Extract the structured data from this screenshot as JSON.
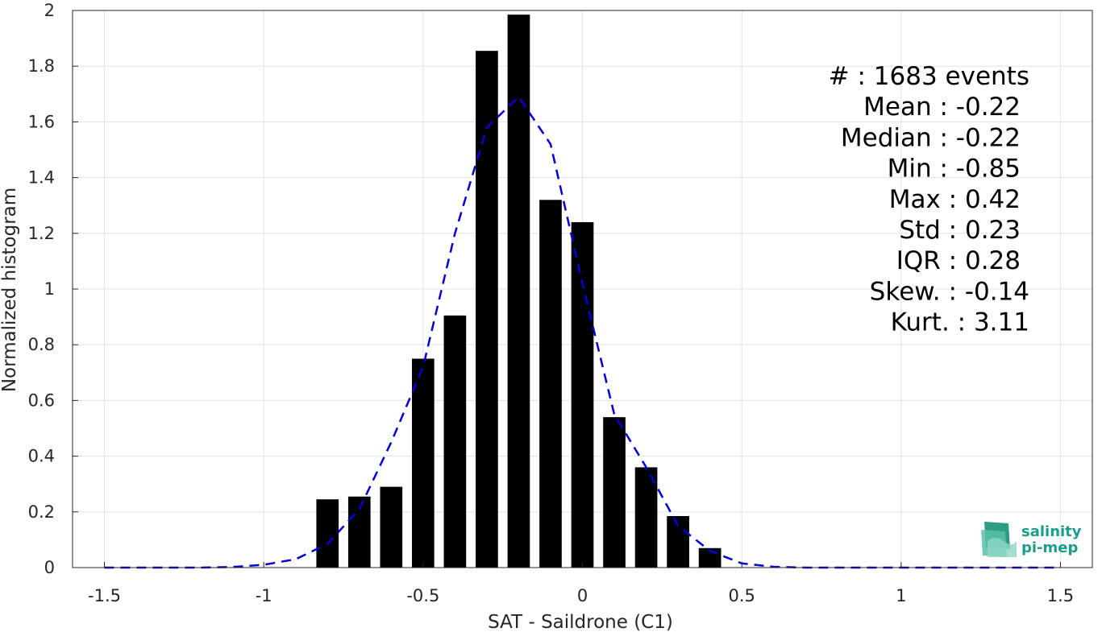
{
  "chart_data": {
    "type": "bar",
    "title": "",
    "xlabel": "SAT - Saildrone (C1)",
    "ylabel": "Normalized histogram",
    "xlim": [
      -1.6,
      1.6
    ],
    "ylim": [
      0,
      2
    ],
    "grid": true,
    "x_ticks": [
      -1.5,
      -1,
      -0.5,
      0,
      0.5,
      1,
      1.5
    ],
    "x_tick_labels": [
      "-1.5",
      "-1",
      "-0.5",
      "0",
      "0.5",
      "1",
      "1.5"
    ],
    "y_ticks": [
      0,
      0.2,
      0.4,
      0.6,
      0.8,
      1,
      1.2,
      1.4,
      1.6,
      1.8,
      2
    ],
    "y_tick_labels": [
      "0",
      "0.2",
      "0.4",
      "0.6",
      "0.8",
      "1",
      "1.2",
      "1.4",
      "1.6",
      "1.8",
      "2"
    ],
    "bar_width": 0.07,
    "bar_color": "#000000",
    "series": [
      {
        "x": [
          -0.8,
          -0.7,
          -0.6,
          -0.5,
          -0.4,
          -0.3,
          -0.2,
          -0.1,
          0.0,
          0.1,
          0.2,
          0.3,
          0.4
        ],
        "values": [
          0.245,
          0.255,
          0.29,
          0.75,
          0.905,
          1.855,
          1.985,
          1.32,
          1.24,
          0.54,
          0.36,
          0.185,
          0.07
        ]
      }
    ],
    "fit_curve": {
      "style": "dashed",
      "color": "#0000dd",
      "x": [
        -1.5,
        -1.4,
        -1.3,
        -1.2,
        -1.1,
        -1.0,
        -0.9,
        -0.8,
        -0.7,
        -0.6,
        -0.5,
        -0.4,
        -0.3,
        -0.2,
        -0.1,
        0.0,
        0.1,
        0.2,
        0.3,
        0.4,
        0.5,
        0.6,
        0.7,
        0.8,
        0.9,
        1.0,
        1.1,
        1.2,
        1.3,
        1.4,
        1.5
      ],
      "y": [
        0.0,
        0.0,
        0.0,
        0.0,
        0.002,
        0.01,
        0.03,
        0.085,
        0.21,
        0.45,
        0.72,
        1.2,
        1.58,
        1.69,
        1.52,
        1.02,
        0.55,
        0.36,
        0.15,
        0.06,
        0.015,
        0.003,
        0.0,
        0.0,
        0.0,
        0.0,
        0.0,
        0.0,
        0.0,
        0.0,
        0.0
      ]
    },
    "stats": [
      {
        "label": "#  : 1683 events"
      },
      {
        "label": "Mean : -0.22"
      },
      {
        "label": "Median : -0.22"
      },
      {
        "label": "Min : -0.85"
      },
      {
        "label": "Max : 0.42"
      },
      {
        "label": "Std : 0.23"
      },
      {
        "label": "IQR : 0.28"
      },
      {
        "label": "Skew. : -0.14"
      },
      {
        "label": "Kurt. : 3.11"
      }
    ]
  },
  "logo": {
    "line1": "salinity",
    "line2": "pi-mep",
    "color": "#1a9e8a"
  }
}
